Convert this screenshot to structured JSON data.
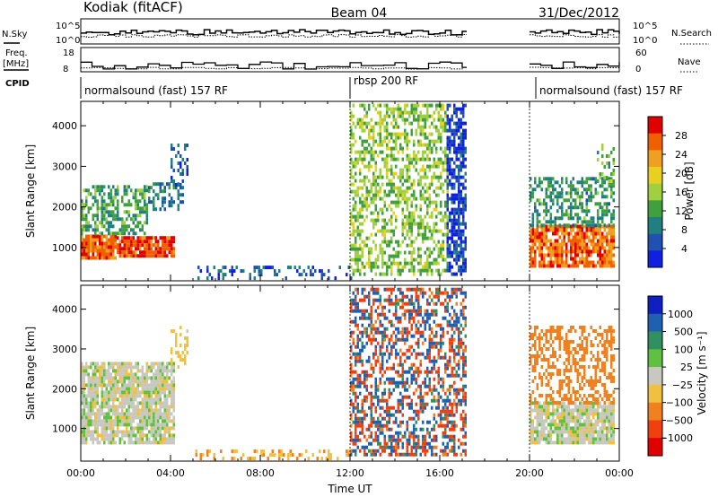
{
  "header": {
    "station": "Kodiak (fitACF)",
    "beam": "Beam 04",
    "date": "31/Dec/2012"
  },
  "top_panels": {
    "nsky_label": "N.Sky",
    "nsearch_label": "N.Search",
    "noise_ticks_left": [
      "10^5",
      "10^0"
    ],
    "noise_ticks_right": [
      "10^5",
      "10^0"
    ],
    "freq_label_1": "Freq.",
    "freq_label_2": "[MHz]",
    "freq_ticks": [
      "18",
      "8"
    ],
    "nave_label": "Nave",
    "nave_ticks": [
      "60",
      "0"
    ],
    "cpid_label": "CPID",
    "cpid_segments": [
      {
        "label": "normalsound (fast) 157 RF",
        "start": 0,
        "end": 12
      },
      {
        "label": "rbsp 200 RF",
        "start": 12,
        "end": 20
      },
      {
        "label": "normalsound (fast) 157 RF",
        "start": 20,
        "end": 24
      }
    ]
  },
  "chart_data": [
    {
      "type": "heatmap",
      "name": "power",
      "ylabel": "Slant Range [km]",
      "colorbar_label": "Power [dB]",
      "colorbar_ticks": [
        "28",
        "24",
        "20",
        "16",
        "12",
        "8",
        "4"
      ],
      "colorbar_colors": [
        "#e00000",
        "#f06000",
        "#f0a020",
        "#e8d020",
        "#a0d040",
        "#40a040",
        "#208080",
        "#2050b0",
        "#1020e0"
      ],
      "ylim": [
        180,
        4600
      ],
      "yticks": [
        "4000",
        "3000",
        "2000",
        "1000"
      ],
      "xlim": [
        0,
        24
      ],
      "data_gap_ut": [
        17.3,
        20.0
      ],
      "regions": [
        {
          "t0": 0.0,
          "t1": 1.6,
          "r0": 700,
          "r1": 1300,
          "power": 26,
          "density": 0.9
        },
        {
          "t0": 1.6,
          "t1": 4.2,
          "r0": 750,
          "r1": 1200,
          "power": 28,
          "density": 0.9
        },
        {
          "t0": 0.0,
          "t1": 3.0,
          "r0": 1300,
          "r1": 2500,
          "power": 12,
          "density": 0.55
        },
        {
          "t0": 3.0,
          "t1": 4.5,
          "r0": 1900,
          "r1": 2600,
          "power": 8,
          "density": 0.4
        },
        {
          "t0": 4.0,
          "t1": 4.7,
          "r0": 2500,
          "r1": 3500,
          "power": 6,
          "density": 0.4
        },
        {
          "t0": 5.0,
          "t1": 12.0,
          "r0": 200,
          "r1": 500,
          "power": 6,
          "density": 0.25
        },
        {
          "t0": 12.0,
          "t1": 16.3,
          "r0": 300,
          "r1": 4600,
          "power": 15,
          "density": 0.5
        },
        {
          "t0": 16.3,
          "t1": 17.2,
          "r0": 300,
          "r1": 4600,
          "power": 4,
          "density": 0.65
        },
        {
          "t0": 20.0,
          "t1": 23.8,
          "r0": 500,
          "r1": 1500,
          "power": 26,
          "density": 0.8
        },
        {
          "t0": 20.0,
          "t1": 23.8,
          "r0": 1500,
          "r1": 2700,
          "power": 11,
          "density": 0.5
        },
        {
          "t0": 23.0,
          "t1": 23.8,
          "r0": 2500,
          "r1": 3500,
          "power": 14,
          "density": 0.4
        }
      ]
    },
    {
      "type": "heatmap",
      "name": "velocity",
      "ylabel": "Slant Range [km]",
      "xlabel": "Time UT",
      "colorbar_label": "Velocity [m s⁻¹]",
      "colorbar_ticks": [
        "1000",
        "500",
        "100",
        "25",
        "−25",
        "−100",
        "−500",
        "−1000"
      ],
      "colorbar_colors": [
        "#1020c0",
        "#2060b0",
        "#309060",
        "#60c040",
        "#c8c8c0",
        "#f0c040",
        "#f08020",
        "#f04010",
        "#e00000"
      ],
      "ylim": [
        180,
        4600
      ],
      "yticks": [
        "4000",
        "3000",
        "2000",
        "1000"
      ],
      "xlim": [
        0,
        24
      ],
      "xticks": [
        "00:00",
        "04:00",
        "08:00",
        "12:00",
        "16:00",
        "20:00",
        "00:00"
      ],
      "xtick_values": [
        0,
        4,
        8,
        12,
        16,
        20,
        24
      ],
      "regions": [
        {
          "t0": 0.0,
          "t1": 4.2,
          "r0": 600,
          "r1": 2600,
          "velocity": 0,
          "density": 0.85
        },
        {
          "t0": 4.0,
          "t1": 4.7,
          "r0": 2500,
          "r1": 3500,
          "velocity": -60,
          "density": 0.35
        },
        {
          "t0": 5.0,
          "t1": 12.0,
          "r0": 200,
          "r1": 450,
          "velocity": -100,
          "density": 0.3
        },
        {
          "t0": 12.0,
          "t1": 17.2,
          "r0": 300,
          "r1": 4600,
          "velocity": 0,
          "mixed": true,
          "density": 0.5
        },
        {
          "t0": 20.0,
          "t1": 23.8,
          "r0": 600,
          "r1": 1600,
          "velocity": 0,
          "density": 0.85
        },
        {
          "t0": 20.0,
          "t1": 23.8,
          "r0": 1600,
          "r1": 3500,
          "velocity": -150,
          "density": 0.45
        }
      ]
    }
  ]
}
